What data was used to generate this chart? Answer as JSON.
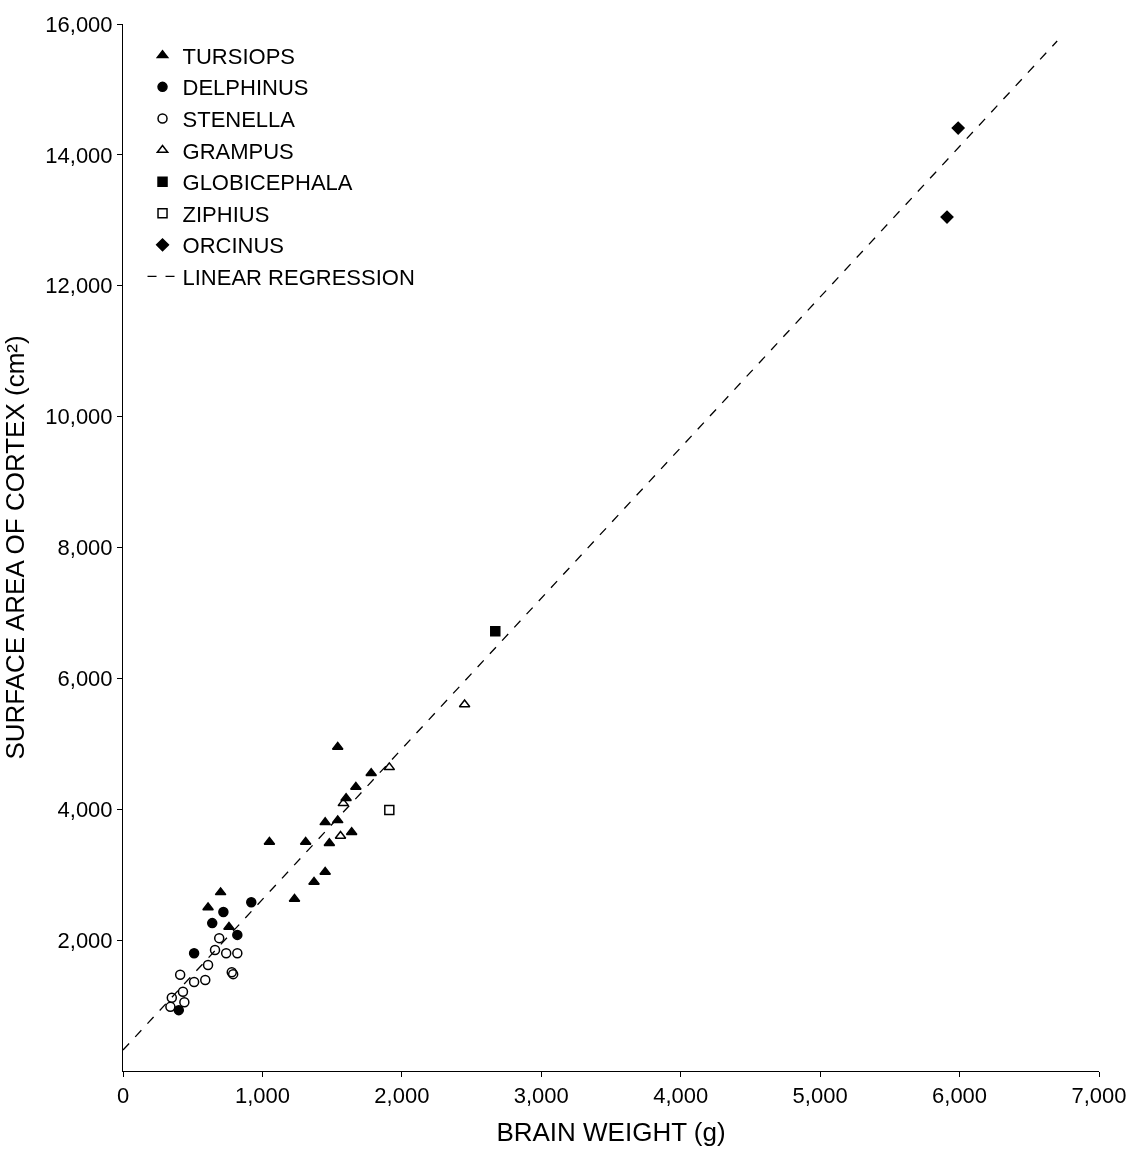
{
  "chart_data": {
    "type": "scatter",
    "xlabel": "BRAIN WEIGHT (g)",
    "ylabel": "SURFACE AREA OF CORTEX (cm²)",
    "xlim": [
      0,
      7000
    ],
    "ylim": [
      0,
      16000
    ],
    "xticks": [
      0,
      {
        "value": 1000,
        "label": "1,000"
      },
      {
        "value": 2000,
        "label": "2,000"
      },
      {
        "value": 3000,
        "label": "3,000"
      },
      {
        "value": 4000,
        "label": "4,000"
      },
      {
        "value": 5000,
        "label": "5,000"
      },
      {
        "value": 6000,
        "label": "6,000"
      },
      {
        "value": 7000,
        "label": "7,000"
      }
    ],
    "yticks": [
      {
        "value": 2000,
        "label": "2,000"
      },
      {
        "value": 4000,
        "label": "4,000"
      },
      {
        "value": 6000,
        "label": "6,000"
      },
      {
        "value": 8000,
        "label": "8,000"
      },
      {
        "value": 10000,
        "label": "10,000"
      },
      {
        "value": 12000,
        "label": "12,000"
      },
      {
        "value": 14000,
        "label": "14,000"
      },
      {
        "value": 16000,
        "label": "16,000"
      }
    ],
    "legend": "top left",
    "series": [
      {
        "name": "TURSIOPS",
        "color": "#000000",
        "marker": "triangle",
        "x": [
          1540,
          1780,
          1670,
          1600,
          1450,
          1540,
          1640,
          1310,
          1480,
          1050,
          1450,
          1370,
          1230,
          700,
          610,
          760
        ],
        "values": [
          4950,
          4550,
          4340,
          4170,
          3800,
          3830,
          3650,
          3500,
          3480,
          3500,
          3040,
          2890,
          2630,
          2730,
          2500,
          2200
        ]
      },
      {
        "name": "DELPHINUS",
        "color": "#000000",
        "marker": "circle",
        "x": [
          920,
          720,
          640,
          820,
          510,
          400
        ],
        "values": [
          2580,
          2430,
          2260,
          2080,
          1800,
          930
        ]
      },
      {
        "name": "STENELLA",
        "color": "#000000",
        "marker": "circle",
        "x": [
          690,
          660,
          740,
          820,
          610,
          780,
          590,
          410,
          510,
          350,
          430,
          440,
          340,
          790
        ],
        "values": [
          2030,
          1850,
          1800,
          1800,
          1620,
          1510,
          1390,
          1470,
          1360,
          1120,
          1210,
          1050,
          980,
          1480
        ]
      },
      {
        "name": "GRAMPUS",
        "color": "#000000",
        "marker": "triangle",
        "x": [
          2450,
          1910,
          1580,
          1560
        ],
        "values": [
          5600,
          4640,
          4090,
          3590
        ]
      },
      {
        "name": "GLOBICEPHALA",
        "color": "#000000",
        "marker": "square",
        "x": [
          2670
        ],
        "values": [
          6720
        ]
      },
      {
        "name": "ZIPHIUS",
        "color": "#000000",
        "marker": "square",
        "x": [
          1910
        ],
        "values": [
          3990
        ]
      },
      {
        "name": "ORCINUS",
        "color": "#000000",
        "marker": "diamond",
        "x": [
          5990,
          5910
        ],
        "values": [
          14410,
          13050
        ]
      },
      {
        "name": "LINEAR REGRESSION",
        "type": "line",
        "line_style": "dashed",
        "marker": "none",
        "color": "#000000",
        "x": [
          0,
          6700
        ],
        "values": [
          320,
          15740
        ]
      }
    ]
  }
}
